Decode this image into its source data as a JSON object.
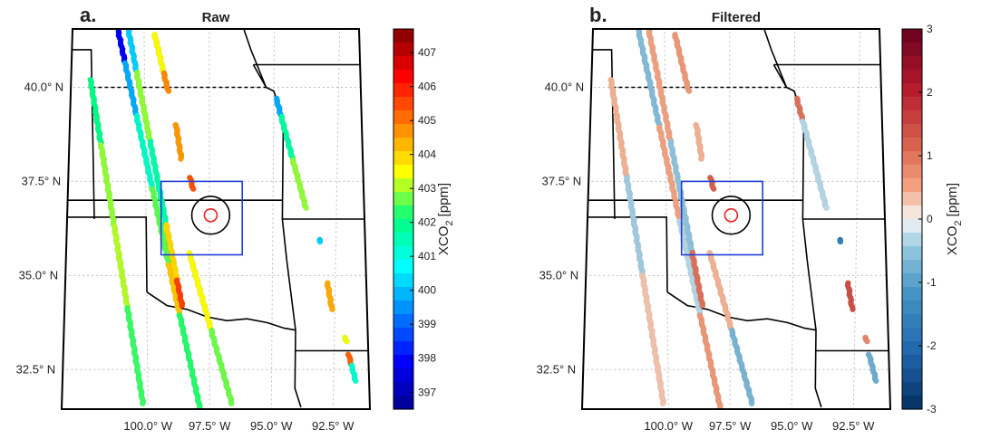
{
  "chart_data": [
    {
      "type": "scatter",
      "panel_letter": "a.",
      "title": "Raw",
      "lat_ticks": [
        40.0,
        37.5,
        35.0,
        32.5
      ],
      "lat_tick_labels": [
        "40.0° N",
        "37.5° N",
        "35.0° N",
        "32.5° N"
      ],
      "lon_ticks": [
        -100.0,
        -97.5,
        -95.0,
        -92.5
      ],
      "lon_tick_labels": [
        "100.0° W",
        "97.5° W",
        "95.0° W",
        "92.5° W"
      ],
      "grid": true,
      "colorbar": {
        "label_main": "XCO",
        "label_sub": "2",
        "label_unit": "[ppm]",
        "range": [
          396.5,
          407.7
        ],
        "ticks": [
          397,
          398,
          399,
          400,
          401,
          402,
          403,
          404,
          405,
          406,
          407
        ],
        "tick_labels": [
          "397",
          "398",
          "399",
          "400",
          "401",
          "402",
          "403",
          "404",
          "405",
          "406",
          "407"
        ],
        "colormap": "jet"
      },
      "study_box": {
        "lon": [
          -99.4,
          -96.2
        ],
        "lat": [
          35.55,
          37.5
        ]
      },
      "rings": [
        {
          "center": [
            -97.45,
            36.6
          ],
          "radius_deg": 0.75,
          "color": "#000000"
        },
        {
          "center": [
            -97.45,
            36.6
          ],
          "radius_deg": 0.25,
          "color": "#ee2222"
        }
      ],
      "tracks": [
        {
          "start": [
            -102.1,
            40.2
          ],
          "end": [
            -100.2,
            31.6
          ],
          "segments": [
            {
              "t": [
                0.0,
                0.2
              ],
              "value": 402.0
            },
            {
              "t": [
                0.2,
                0.45
              ],
              "value": 402.9
            },
            {
              "t": [
                0.45,
                0.7
              ],
              "value": 403.1
            },
            {
              "t": [
                0.7,
                1.0
              ],
              "value": 402.4
            }
          ]
        },
        {
          "start": [
            -101.0,
            41.5
          ],
          "end": [
            -97.9,
            31.5
          ],
          "segments": [
            {
              "t": [
                0.0,
                0.08
              ],
              "value": 397.8
            },
            {
              "t": [
                0.08,
                0.22
              ],
              "value": 399.8
            },
            {
              "t": [
                0.22,
                0.42
              ],
              "value": 401.3
            },
            {
              "t": [
                0.42,
                0.62
              ],
              "value": 402.6
            },
            {
              "t": [
                0.62,
                0.75
              ],
              "value": 404.1
            },
            {
              "t": [
                0.75,
                1.0
              ],
              "value": 402.3
            }
          ]
        },
        {
          "start": [
            -100.6,
            41.5
          ],
          "end": [
            -98.6,
            34.2
          ],
          "segments": [
            {
              "t": [
                0.0,
                0.15
              ],
              "value": 400.2
            },
            {
              "t": [
                0.15,
                0.4
              ],
              "value": 402.9
            },
            {
              "t": [
                0.4,
                0.7
              ],
              "value": 401.6
            },
            {
              "t": [
                0.7,
                0.9
              ],
              "value": 403.9
            },
            {
              "t": [
                0.9,
                1.0
              ],
              "value": 405.6
            }
          ]
        },
        {
          "start": [
            -99.6,
            41.4
          ],
          "end": [
            -99.1,
            39.9
          ],
          "segments": [
            {
              "t": [
                0.0,
                0.65
              ],
              "value": 403.5
            },
            {
              "t": [
                0.65,
                1.0
              ],
              "value": 404.8
            }
          ]
        },
        {
          "start": [
            -98.8,
            39.0
          ],
          "end": [
            -98.6,
            38.1
          ],
          "segments": [
            {
              "t": [
                0.0,
                1.0
              ],
              "value": 404.6
            }
          ]
        },
        {
          "start": [
            -98.25,
            37.6
          ],
          "end": [
            -98.15,
            37.3
          ],
          "segments": [
            {
              "t": [
                0.0,
                1.0
              ],
              "value": 405.4
            }
          ]
        },
        {
          "start": [
            -98.3,
            35.6
          ],
          "end": [
            -96.6,
            31.6
          ],
          "segments": [
            {
              "t": [
                0.0,
                0.5
              ],
              "value": 403.5
            },
            {
              "t": [
                0.5,
                1.0
              ],
              "value": 402.7
            }
          ]
        },
        {
          "start": [
            -94.9,
            39.7
          ],
          "end": [
            -93.7,
            36.8
          ],
          "segments": [
            {
              "t": [
                0.0,
                0.15
              ],
              "value": 399.8
            },
            {
              "t": [
                0.15,
                0.55
              ],
              "value": 401.7
            },
            {
              "t": [
                0.55,
                1.0
              ],
              "value": 402.9
            }
          ]
        },
        {
          "start": [
            -93.15,
            35.95
          ],
          "end": [
            -93.1,
            35.9
          ],
          "segments": [
            {
              "t": [
                0.0,
                1.0
              ],
              "value": 400.2
            }
          ]
        },
        {
          "start": [
            -92.8,
            34.8
          ],
          "end": [
            -92.6,
            34.1
          ],
          "segments": [
            {
              "t": [
                0.0,
                1.0
              ],
              "value": 404.4
            }
          ]
        },
        {
          "start": [
            -92.05,
            33.35
          ],
          "end": [
            -92.0,
            33.25
          ],
          "segments": [
            {
              "t": [
                0.0,
                1.0
              ],
              "value": 403.4
            }
          ]
        },
        {
          "start": [
            -91.9,
            32.9
          ],
          "end": [
            -91.6,
            32.2
          ],
          "segments": [
            {
              "t": [
                0.0,
                0.4
              ],
              "value": 405.2
            },
            {
              "t": [
                0.4,
                1.0
              ],
              "value": 401.2
            }
          ]
        }
      ]
    },
    {
      "type": "scatter",
      "panel_letter": "b.",
      "title": "Filtered",
      "lat_ticks": [
        40.0,
        37.5,
        35.0,
        32.5
      ],
      "lat_tick_labels": [
        "40.0° N",
        "37.5° N",
        "35.0° N",
        "32.5° N"
      ],
      "lon_ticks": [
        -100.0,
        -97.5,
        -95.0,
        -92.5
      ],
      "lon_tick_labels": [
        "100.0° W",
        "97.5° W",
        "95.0° W",
        "92.5° W"
      ],
      "grid": true,
      "colorbar": {
        "label_main": "XCO",
        "label_sub": "2",
        "label_unit": "[ppm]",
        "range": [
          -3,
          3
        ],
        "ticks": [
          3,
          2,
          1,
          0,
          -1,
          -2,
          -3
        ],
        "tick_labels": [
          "3",
          "2",
          "1",
          "0",
          "-1",
          "-2",
          "-3"
        ],
        "colormap": "RdBu"
      },
      "study_box": {
        "lon": [
          -99.4,
          -96.2
        ],
        "lat": [
          35.55,
          37.5
        ]
      },
      "rings": [
        {
          "center": [
            -97.45,
            36.6
          ],
          "radius_deg": 0.75,
          "color": "#000000"
        },
        {
          "center": [
            -97.45,
            36.6
          ],
          "radius_deg": 0.25,
          "color": "#ee2222"
        }
      ],
      "tracks": [
        {
          "start": [
            -102.1,
            40.2
          ],
          "end": [
            -100.2,
            31.6
          ],
          "segments": [
            {
              "t": [
                0.0,
                0.3
              ],
              "value": 0.4
            },
            {
              "t": [
                0.3,
                0.6
              ],
              "value": -0.4
            },
            {
              "t": [
                0.6,
                1.0
              ],
              "value": 0.3
            }
          ]
        },
        {
          "start": [
            -101.0,
            41.5
          ],
          "end": [
            -97.9,
            31.5
          ],
          "segments": [
            {
              "t": [
                0.0,
                0.25
              ],
              "value": -0.6
            },
            {
              "t": [
                0.25,
                0.5
              ],
              "value": 0.5
            },
            {
              "t": [
                0.5,
                0.75
              ],
              "value": -0.3
            },
            {
              "t": [
                0.75,
                1.0
              ],
              "value": 0.6
            }
          ]
        },
        {
          "start": [
            -100.6,
            41.5
          ],
          "end": [
            -98.6,
            34.2
          ],
          "segments": [
            {
              "t": [
                0.0,
                0.4
              ],
              "value": 0.5
            },
            {
              "t": [
                0.4,
                0.8
              ],
              "value": -0.5
            },
            {
              "t": [
                0.8,
                1.0
              ],
              "value": 1.0
            }
          ]
        },
        {
          "start": [
            -99.6,
            41.4
          ],
          "end": [
            -99.1,
            39.9
          ],
          "segments": [
            {
              "t": [
                0.0,
                1.0
              ],
              "value": 0.6
            }
          ]
        },
        {
          "start": [
            -98.8,
            39.0
          ],
          "end": [
            -98.6,
            38.1
          ],
          "segments": [
            {
              "t": [
                0.0,
                1.0
              ],
              "value": 0.4
            }
          ]
        },
        {
          "start": [
            -98.25,
            37.6
          ],
          "end": [
            -98.15,
            37.3
          ],
          "segments": [
            {
              "t": [
                0.0,
                1.0
              ],
              "value": 1.2
            }
          ]
        },
        {
          "start": [
            -98.3,
            35.6
          ],
          "end": [
            -96.6,
            31.6
          ],
          "segments": [
            {
              "t": [
                0.0,
                0.5
              ],
              "value": 0.4
            },
            {
              "t": [
                0.5,
                1.0
              ],
              "value": -0.7
            }
          ]
        },
        {
          "start": [
            -94.9,
            39.7
          ],
          "end": [
            -93.7,
            36.8
          ],
          "segments": [
            {
              "t": [
                0.0,
                0.2
              ],
              "value": 1.0
            },
            {
              "t": [
                0.2,
                1.0
              ],
              "value": -0.3
            }
          ]
        },
        {
          "start": [
            -93.15,
            35.95
          ],
          "end": [
            -93.1,
            35.9
          ],
          "segments": [
            {
              "t": [
                0.0,
                1.0
              ],
              "value": -1.6
            }
          ]
        },
        {
          "start": [
            -92.8,
            34.8
          ],
          "end": [
            -92.6,
            34.1
          ],
          "segments": [
            {
              "t": [
                0.0,
                1.0
              ],
              "value": 1.4
            }
          ]
        },
        {
          "start": [
            -92.05,
            33.35
          ],
          "end": [
            -92.0,
            33.25
          ],
          "segments": [
            {
              "t": [
                0.0,
                1.0
              ],
              "value": 0.8
            }
          ]
        },
        {
          "start": [
            -91.9,
            32.9
          ],
          "end": [
            -91.6,
            32.2
          ],
          "segments": [
            {
              "t": [
                0.0,
                1.0
              ],
              "value": -0.8
            }
          ]
        }
      ]
    }
  ],
  "colors": {
    "box": "#1f3fd6",
    "ring_outer": "#000000",
    "ring_inner": "#ee2222",
    "border": "#000000",
    "grid": "#bdbdbd"
  }
}
